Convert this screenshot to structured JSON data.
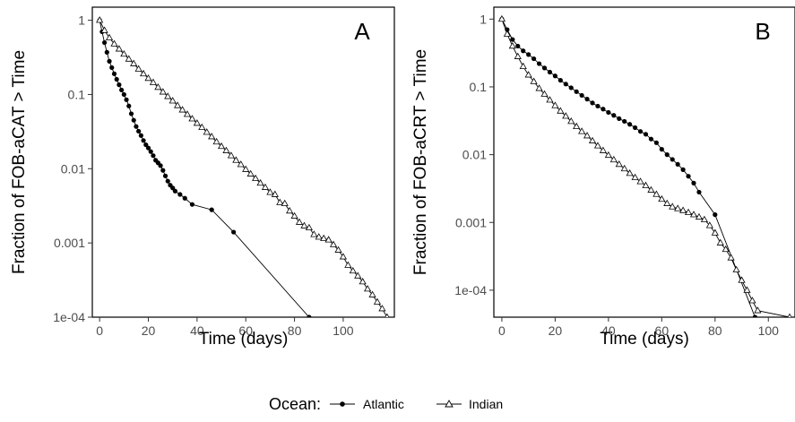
{
  "chart_data": [
    {
      "type": "line",
      "panel_label": "A",
      "xlabel": "Time (days)",
      "ylabel": "Fraction of FOB-aCAT > Time",
      "xlim": [
        -3,
        121
      ],
      "ylim": [
        0.0001,
        1.5
      ],
      "yscale": "log",
      "xticks": [
        0,
        20,
        40,
        60,
        80,
        100
      ],
      "yticks": [
        1,
        0.1,
        0.01,
        0.001,
        0.0001
      ],
      "ytick_labels": [
        "1",
        "0.1",
        "0.01",
        "0.001",
        "1e-04"
      ],
      "grid": false,
      "series": [
        {
          "name": "Atlantic",
          "marker": "circle",
          "x": [
            0,
            1,
            2,
            3,
            4,
            5,
            6,
            7,
            8,
            9,
            10,
            11,
            12,
            13,
            14,
            15,
            16,
            17,
            18,
            19,
            20,
            21,
            22,
            23,
            24,
            25,
            26,
            27,
            28,
            29,
            30,
            31,
            33,
            35,
            38,
            46,
            55,
            86
          ],
          "y": [
            1,
            0.7,
            0.5,
            0.37,
            0.28,
            0.23,
            0.19,
            0.16,
            0.135,
            0.115,
            0.1,
            0.085,
            0.07,
            0.055,
            0.045,
            0.037,
            0.032,
            0.028,
            0.024,
            0.021,
            0.019,
            0.017,
            0.015,
            0.013,
            0.012,
            0.011,
            0.0095,
            0.008,
            0.0068,
            0.006,
            0.0055,
            0.005,
            0.0045,
            0.004,
            0.0033,
            0.0028,
            0.0014,
            0.0001
          ]
        },
        {
          "name": "Indian",
          "marker": "triangle",
          "x": [
            0,
            2,
            4,
            6,
            8,
            10,
            12,
            14,
            16,
            18,
            20,
            22,
            24,
            26,
            28,
            30,
            32,
            34,
            36,
            38,
            40,
            42,
            44,
            46,
            48,
            50,
            52,
            54,
            56,
            58,
            60,
            62,
            64,
            66,
            68,
            70,
            72,
            74,
            76,
            78,
            80,
            82,
            84,
            86,
            88,
            90,
            92,
            94,
            96,
            98,
            100,
            102,
            104,
            106,
            108,
            110,
            112,
            114,
            116,
            118
          ],
          "y": [
            1,
            0.73,
            0.58,
            0.48,
            0.41,
            0.35,
            0.3,
            0.26,
            0.22,
            0.19,
            0.165,
            0.145,
            0.125,
            0.108,
            0.094,
            0.082,
            0.071,
            0.062,
            0.054,
            0.047,
            0.041,
            0.036,
            0.031,
            0.027,
            0.023,
            0.02,
            0.0175,
            0.015,
            0.013,
            0.0114,
            0.0098,
            0.0085,
            0.0074,
            0.0064,
            0.0056,
            0.0048,
            0.0045,
            0.0035,
            0.0034,
            0.0027,
            0.0023,
            0.0019,
            0.0017,
            0.0016,
            0.0013,
            0.0012,
            0.00115,
            0.0011,
            0.00095,
            0.0008,
            0.00065,
            0.0005,
            0.00042,
            0.00036,
            0.0003,
            0.00024,
            0.0002,
            0.00016,
            0.00013,
            0.0001
          ]
        }
      ]
    },
    {
      "type": "line",
      "panel_label": "B",
      "xlabel": "Time (days)",
      "ylabel": "Fraction of FOB-aCRT > Time",
      "xlim": [
        -3,
        110
      ],
      "ylim": [
        4e-05,
        1.5
      ],
      "yscale": "log",
      "xticks": [
        0,
        20,
        40,
        60,
        80,
        100
      ],
      "yticks": [
        1,
        0.1,
        0.01,
        0.001,
        0.0001
      ],
      "ytick_labels": [
        "1",
        "0.1",
        "0.01",
        "0.001",
        "1e-04"
      ],
      "grid": false,
      "series": [
        {
          "name": "Atlantic",
          "marker": "circle",
          "x": [
            0,
            2,
            4,
            6,
            8,
            10,
            12,
            14,
            16,
            18,
            20,
            22,
            24,
            26,
            28,
            30,
            32,
            34,
            36,
            38,
            40,
            42,
            44,
            46,
            48,
            50,
            52,
            54,
            56,
            58,
            60,
            62,
            64,
            66,
            68,
            70,
            72,
            74,
            80,
            95
          ],
          "y": [
            1,
            0.7,
            0.5,
            0.4,
            0.34,
            0.3,
            0.26,
            0.22,
            0.19,
            0.165,
            0.145,
            0.125,
            0.11,
            0.097,
            0.085,
            0.075,
            0.066,
            0.058,
            0.052,
            0.047,
            0.042,
            0.038,
            0.034,
            0.031,
            0.028,
            0.025,
            0.022,
            0.02,
            0.017,
            0.015,
            0.012,
            0.01,
            0.0085,
            0.0072,
            0.006,
            0.0048,
            0.0038,
            0.0028,
            0.0013,
            4e-05
          ]
        },
        {
          "name": "Indian",
          "marker": "triangle",
          "x": [
            0,
            2,
            4,
            6,
            8,
            10,
            12,
            14,
            16,
            18,
            20,
            22,
            24,
            26,
            28,
            30,
            32,
            34,
            36,
            38,
            40,
            42,
            44,
            46,
            48,
            50,
            52,
            54,
            56,
            58,
            60,
            62,
            64,
            66,
            68,
            70,
            72,
            74,
            76,
            78,
            80,
            82,
            84,
            86,
            88,
            90,
            92,
            94,
            96,
            108
          ],
          "y": [
            1,
            0.6,
            0.4,
            0.28,
            0.2,
            0.15,
            0.12,
            0.095,
            0.078,
            0.064,
            0.053,
            0.044,
            0.037,
            0.031,
            0.026,
            0.022,
            0.019,
            0.016,
            0.0135,
            0.0115,
            0.0098,
            0.0084,
            0.0072,
            0.0062,
            0.0053,
            0.0046,
            0.004,
            0.0035,
            0.003,
            0.0026,
            0.0022,
            0.0019,
            0.0017,
            0.0016,
            0.0015,
            0.0014,
            0.0013,
            0.0012,
            0.0011,
            0.0009,
            0.0007,
            0.0005,
            0.0004,
            0.0003,
            0.0002,
            0.00014,
            0.0001,
            7e-05,
            5e-05,
            4e-05
          ]
        }
      ]
    }
  ],
  "legend": {
    "title": "Ocean:",
    "items": [
      "Atlantic",
      "Indian"
    ]
  }
}
